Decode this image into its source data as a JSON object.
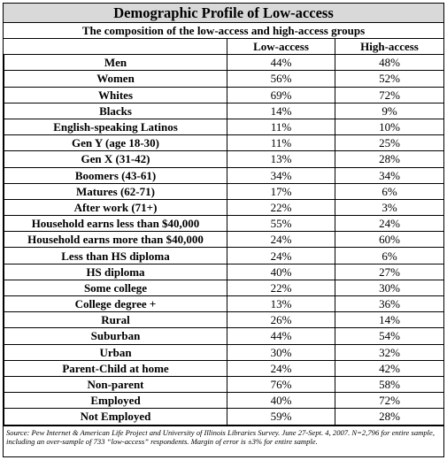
{
  "title": "Demographic Profile of Low-access",
  "subtitle": "The composition of the low-access and high-access groups",
  "columns": [
    "",
    "Low-access",
    "High-access"
  ],
  "rows": [
    {
      "label": "Men",
      "low": "44%",
      "high": "48%"
    },
    {
      "label": "Women",
      "low": "56%",
      "high": "52%"
    },
    {
      "label": "Whites",
      "low": "69%",
      "high": "72%"
    },
    {
      "label": "Blacks",
      "low": "14%",
      "high": "9%"
    },
    {
      "label": "English-speaking Latinos",
      "low": "11%",
      "high": "10%"
    },
    {
      "label": "Gen Y (age 18-30)",
      "low": "11%",
      "high": "25%"
    },
    {
      "label": "Gen X (31-42)",
      "low": "13%",
      "high": "28%"
    },
    {
      "label": "Boomers (43-61)",
      "low": "34%",
      "high": "34%"
    },
    {
      "label": "Matures (62-71)",
      "low": "17%",
      "high": "6%"
    },
    {
      "label": "After work (71+)",
      "low": "22%",
      "high": "3%"
    },
    {
      "label": "Household earns less than $40,000",
      "low": "55%",
      "high": "24%"
    },
    {
      "label": "Household earns more than $40,000",
      "low": "24%",
      "high": "60%"
    },
    {
      "label": "Less than HS diploma",
      "low": "24%",
      "high": "6%"
    },
    {
      "label": "HS diploma",
      "low": "40%",
      "high": "27%"
    },
    {
      "label": "Some college",
      "low": "22%",
      "high": "30%"
    },
    {
      "label": "College degree +",
      "low": "13%",
      "high": "36%"
    },
    {
      "label": "Rural",
      "low": "26%",
      "high": "14%"
    },
    {
      "label": "Suburban",
      "low": "44%",
      "high": "54%"
    },
    {
      "label": "Urban",
      "low": "30%",
      "high": "32%"
    },
    {
      "label": "Parent-Child at home",
      "low": "24%",
      "high": "42%"
    },
    {
      "label": "Non-parent",
      "low": "76%",
      "high": "58%"
    },
    {
      "label": "Employed",
      "low": "40%",
      "high": "72%"
    },
    {
      "label": "Not Employed",
      "low": "59%",
      "high": "28%"
    }
  ],
  "source": {
    "line1": "Source: Pew Internet & American Life Project and University of Illinois Libraries Survey. June 27-Sept. 4, 2007.",
    "line2": "N=2,796 for entire sample, including an over-sample of 733 “low-access” respondents. Margin of error is ±3% for entire sample."
  },
  "colors": {
    "title_bg": "#d9d9d9",
    "border": "#000000"
  }
}
